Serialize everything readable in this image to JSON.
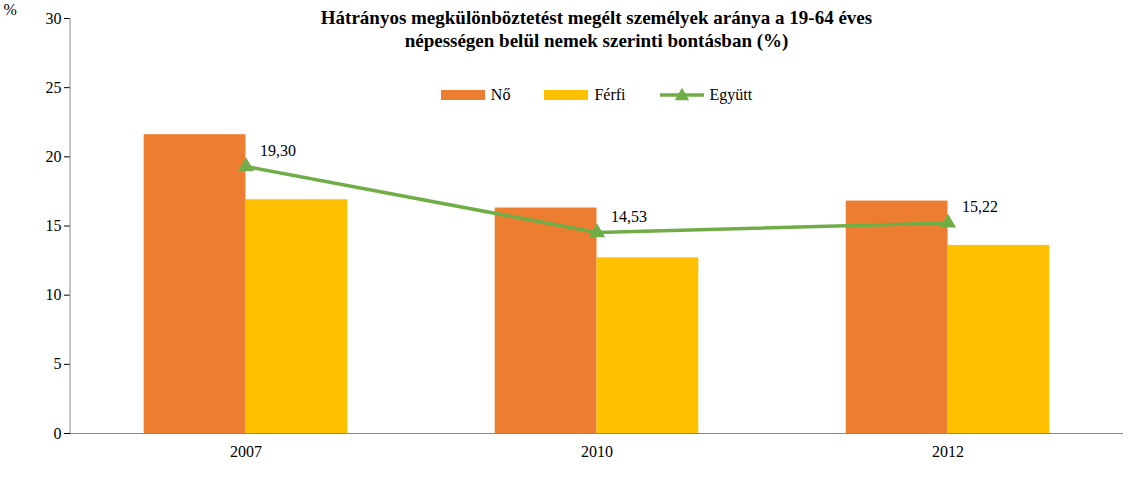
{
  "chart_data": {
    "type": "bar",
    "title": "Hátrányos megkülönböztetést megélt személyek aránya a 19-64 éves\nnépességen belül nemek szerinti bontásban (%)",
    "y_label": "%",
    "categories": [
      "2007",
      "2010",
      "2012"
    ],
    "series": [
      {
        "name": "Nő",
        "type": "bar",
        "color": "#ED7D31",
        "values": [
          21.6,
          16.3,
          16.8
        ]
      },
      {
        "name": "Férfi",
        "type": "bar",
        "color": "#FFC000",
        "values": [
          16.9,
          12.7,
          13.6
        ]
      },
      {
        "name": "Együtt",
        "type": "line",
        "color": "#70AD47",
        "marker": "triangle",
        "values": [
          19.3,
          14.53,
          15.22
        ],
        "value_labels": [
          "19,30",
          "14,53",
          "15,22"
        ],
        "data_labels": true
      }
    ],
    "ylim": [
      0,
      30
    ],
    "yticks": [
      0,
      5,
      10,
      15,
      20,
      25,
      30
    ],
    "grid": false,
    "legend": "top"
  }
}
